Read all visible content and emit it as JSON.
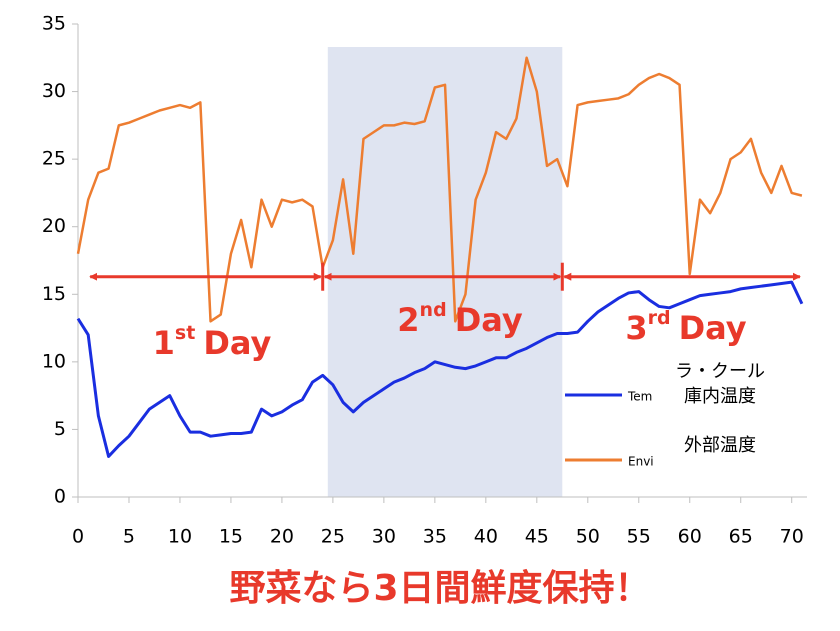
{
  "chart_data": {
    "type": "line",
    "title": "野菜なら3日間鮮度保持！",
    "x": [
      0,
      1,
      2,
      3,
      4,
      5,
      6,
      7,
      8,
      9,
      10,
      11,
      12,
      13,
      14,
      15,
      16,
      17,
      18,
      19,
      20,
      21,
      22,
      23,
      24,
      25,
      26,
      27,
      28,
      29,
      30,
      31,
      32,
      33,
      34,
      35,
      36,
      37,
      38,
      39,
      40,
      41,
      42,
      43,
      44,
      45,
      46,
      47,
      48,
      49,
      50,
      51,
      52,
      53,
      54,
      55,
      56,
      57,
      58,
      59,
      60,
      61,
      62,
      63,
      64,
      65,
      66,
      67,
      68,
      69,
      70,
      71
    ],
    "series": [
      {
        "name": "Tem",
        "color": "#1a2ee0",
        "description": [
          "ラ・クール",
          "庫内温度"
        ],
        "values": [
          13.2,
          12,
          6,
          3,
          3.8,
          4.5,
          5.5,
          6.5,
          7,
          7.5,
          6,
          4.8,
          4.8,
          4.5,
          4.6,
          4.7,
          4.7,
          4.8,
          6.5,
          6,
          6.3,
          6.8,
          7.2,
          8.5,
          9,
          8.3,
          7,
          6.3,
          7,
          7.5,
          8,
          8.5,
          8.8,
          9.2,
          9.5,
          10,
          9.8,
          9.6,
          9.5,
          9.7,
          10,
          10.3,
          10.3,
          10.7,
          11,
          11.4,
          11.8,
          12.1,
          12.1,
          12.2,
          13,
          13.7,
          14.2,
          14.7,
          15.1,
          15.2,
          14.6,
          14.1,
          14,
          14.3,
          14.6,
          14.9,
          15,
          15.1,
          15.2,
          15.4,
          15.5,
          15.6,
          15.7,
          15.8,
          15.9,
          14.3
        ]
      },
      {
        "name": "Envi",
        "color": "#ed7d31",
        "description": [
          "外部温度"
        ],
        "values": [
          18,
          22,
          24,
          24.3,
          27.5,
          27.7,
          28,
          28.3,
          28.6,
          28.8,
          29,
          28.8,
          29.2,
          13,
          13.5,
          18,
          20.5,
          17,
          22,
          20,
          22,
          21.8,
          22,
          21.5,
          17,
          19,
          23.5,
          18,
          26.5,
          27,
          27.5,
          27.5,
          27.7,
          27.6,
          27.8,
          30.3,
          30.5,
          13,
          15,
          22,
          24,
          27,
          26.5,
          28,
          32.5,
          30,
          24.5,
          25,
          23,
          29,
          29.2,
          29.3,
          29.4,
          29.5,
          29.8,
          30.5,
          31,
          31.3,
          31,
          30.5,
          16.5,
          22,
          21,
          22.5,
          25,
          25.5,
          26.5,
          24,
          22.5,
          24.5,
          22.5,
          22.3
        ]
      }
    ],
    "xlim": [
      0,
      71.5
    ],
    "xticks": [
      0,
      5,
      10,
      15,
      20,
      25,
      30,
      35,
      40,
      45,
      50,
      55,
      60,
      65,
      70
    ],
    "ylim": [
      0,
      35
    ],
    "yticks": [
      0,
      5,
      10,
      15,
      20,
      25,
      30,
      35
    ],
    "highlight": [
      24.5,
      47.5
    ],
    "days": [
      {
        "number": "1",
        "suffix": "st",
        "word": "Day",
        "span": [
          1,
          24
        ],
        "y": 16.3
      },
      {
        "number": "2",
        "suffix": "nd",
        "word": "Day",
        "span": [
          24,
          47.5
        ],
        "y": 16.3
      },
      {
        "number": "3",
        "suffix": "rd",
        "word": "Day",
        "span": [
          47.5,
          71
        ],
        "y": 16.3
      }
    ]
  }
}
